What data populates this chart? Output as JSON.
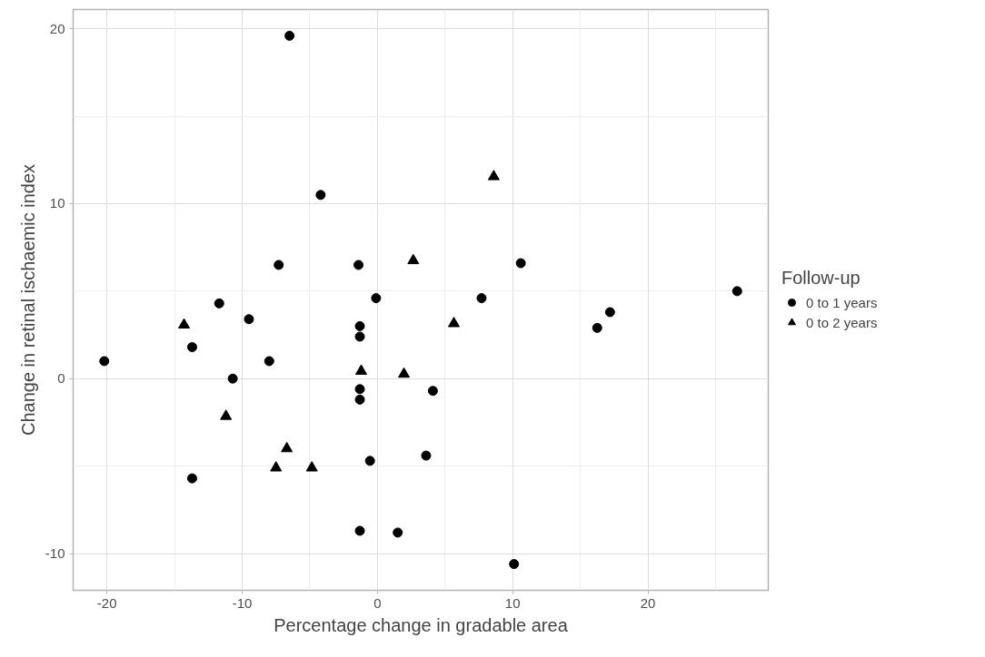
{
  "chart_data": {
    "type": "scatter",
    "xlabel": "Percentage change in gradable area",
    "ylabel": "Change in retinal ischaemic index",
    "legend_title": "Follow-up",
    "legend": "right",
    "grid": true,
    "xlim": [
      -22.5,
      28.9
    ],
    "ylim": [
      -12.1,
      21.1
    ],
    "xticks": [
      -20,
      {
        "value": -15,
        "label": null
      },
      -10,
      {
        "value": -5,
        "label": null
      },
      0,
      {
        "value": 5,
        "label": null
      },
      10,
      {
        "value": 15,
        "label": null
      },
      20,
      {
        "value": 25,
        "label": null
      }
    ],
    "yticks": [
      {
        "value": -5,
        "label": null
      },
      -10,
      0,
      {
        "value": 5,
        "label": null
      },
      10,
      {
        "value": 15,
        "label": null
      },
      20
    ],
    "series": [
      {
        "name": "0 to 1 years",
        "color": "#000000",
        "marker": "circle",
        "x": [
          -20.2,
          -13.7,
          -11.7,
          -9.5,
          -10.7,
          -8.0,
          -13.7,
          -1.3,
          -1.3,
          -1.3,
          -1.3,
          -1.3,
          -0.55,
          -0.1,
          -6.5,
          -4.2,
          -7.3,
          -1.4,
          10.6,
          26.6,
          7.7,
          17.2,
          16.25,
          4.1,
          3.6,
          1.5,
          10.1
        ],
        "values": [
          1.0,
          1.8,
          4.3,
          3.4,
          0.0,
          1.0,
          -5.7,
          3.0,
          2.4,
          -0.6,
          -1.2,
          -8.7,
          -4.7,
          4.6,
          19.6,
          10.5,
          6.5,
          6.5,
          6.6,
          5.0,
          4.6,
          3.8,
          2.9,
          -0.7,
          -4.4,
          -8.8,
          -10.6
        ]
      },
      {
        "name": "0 to 2 years",
        "color": "#000000",
        "marker": "triangle",
        "x": [
          -14.3,
          -11.2,
          -6.7,
          -7.5,
          -4.85,
          -1.2,
          8.6,
          2.65,
          5.65,
          1.96
        ],
        "values": [
          3.07,
          -2.15,
          -4.0,
          -5.1,
          -5.1,
          0.43,
          11.55,
          6.75,
          3.15,
          0.26
        ]
      }
    ]
  }
}
